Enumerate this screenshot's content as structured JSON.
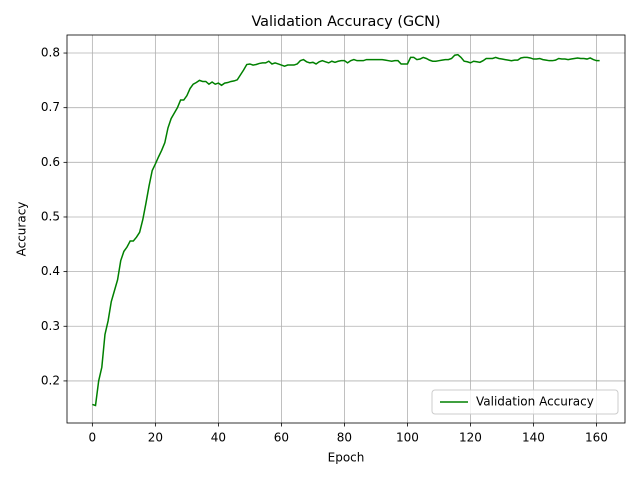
{
  "chart_data": {
    "type": "line",
    "title": "Validation Accuracy (GCN)",
    "x_label": "Epoch",
    "y_label": "Accuracy",
    "x": [
      0,
      1,
      2,
      3,
      4,
      5,
      6,
      7,
      8,
      9,
      10,
      11,
      12,
      13,
      14,
      15,
      16,
      17,
      18,
      19,
      20,
      21,
      22,
      23,
      24,
      25,
      26,
      27,
      28,
      29,
      30,
      31,
      32,
      33,
      34,
      35,
      36,
      37,
      38,
      39,
      40,
      41,
      42,
      43,
      44,
      45,
      46,
      47,
      48,
      49,
      50,
      51,
      52,
      53,
      54,
      55,
      56,
      57,
      58,
      59,
      60,
      61,
      62,
      63,
      64,
      65,
      66,
      67,
      68,
      69,
      70,
      71,
      72,
      73,
      74,
      75,
      76,
      77,
      78,
      79,
      80,
      81,
      82,
      83,
      84,
      85,
      86,
      87,
      88,
      89,
      90,
      91,
      92,
      93,
      94,
      95,
      96,
      97,
      98,
      99,
      100,
      101,
      102,
      103,
      104,
      105,
      106,
      107,
      108,
      109,
      110,
      111,
      112,
      113,
      114,
      115,
      116,
      117,
      118,
      119,
      120,
      121,
      122,
      123,
      124,
      125,
      126,
      127,
      128,
      129,
      130,
      131,
      132,
      133,
      134,
      135,
      136,
      137,
      138,
      139,
      140,
      141,
      142,
      143,
      144,
      145,
      146,
      147,
      148,
      149,
      150,
      151,
      152,
      153,
      154,
      155,
      156,
      157,
      158,
      159,
      160,
      161
    ],
    "series": [
      {
        "name": "Validation Accuracy",
        "color": "#008000",
        "values": [
          0.157,
          0.155,
          0.2,
          0.225,
          0.285,
          0.31,
          0.345,
          0.365,
          0.385,
          0.42,
          0.437,
          0.445,
          0.456,
          0.456,
          0.463,
          0.472,
          0.495,
          0.525,
          0.557,
          0.585,
          0.597,
          0.61,
          0.622,
          0.636,
          0.663,
          0.68,
          0.69,
          0.7,
          0.714,
          0.714,
          0.722,
          0.735,
          0.743,
          0.746,
          0.75,
          0.748,
          0.748,
          0.743,
          0.747,
          0.743,
          0.745,
          0.741,
          0.745,
          0.746,
          0.748,
          0.749,
          0.751,
          0.76,
          0.769,
          0.779,
          0.78,
          0.778,
          0.779,
          0.781,
          0.782,
          0.782,
          0.785,
          0.78,
          0.782,
          0.78,
          0.778,
          0.776,
          0.778,
          0.778,
          0.778,
          0.78,
          0.786,
          0.788,
          0.784,
          0.782,
          0.783,
          0.78,
          0.784,
          0.786,
          0.784,
          0.782,
          0.785,
          0.783,
          0.785,
          0.786,
          0.786,
          0.782,
          0.786,
          0.788,
          0.786,
          0.786,
          0.786,
          0.788,
          0.788,
          0.788,
          0.788,
          0.788,
          0.788,
          0.787,
          0.786,
          0.785,
          0.786,
          0.786,
          0.78,
          0.78,
          0.78,
          0.792,
          0.792,
          0.788,
          0.789,
          0.792,
          0.79,
          0.787,
          0.785,
          0.785,
          0.786,
          0.787,
          0.788,
          0.788,
          0.79,
          0.796,
          0.797,
          0.792,
          0.785,
          0.784,
          0.782,
          0.785,
          0.784,
          0.783,
          0.786,
          0.79,
          0.79,
          0.79,
          0.792,
          0.79,
          0.789,
          0.788,
          0.787,
          0.786,
          0.787,
          0.787,
          0.791,
          0.792,
          0.792,
          0.791,
          0.789,
          0.789,
          0.79,
          0.788,
          0.787,
          0.786,
          0.786,
          0.787,
          0.79,
          0.789,
          0.789,
          0.788,
          0.789,
          0.79,
          0.791,
          0.79,
          0.79,
          0.789,
          0.791,
          0.788,
          0.786,
          0.786
        ]
      }
    ],
    "xlim": [
      -8.05,
      169.05
    ],
    "xticks": [
      0,
      20,
      40,
      60,
      80,
      100,
      120,
      140,
      160
    ],
    "ylim": [
      0.123,
      0.833
    ],
    "yticks": [
      0.2,
      0.3,
      0.4,
      0.5,
      0.6,
      0.7,
      0.8
    ],
    "grid": true,
    "legend": "lower right"
  }
}
